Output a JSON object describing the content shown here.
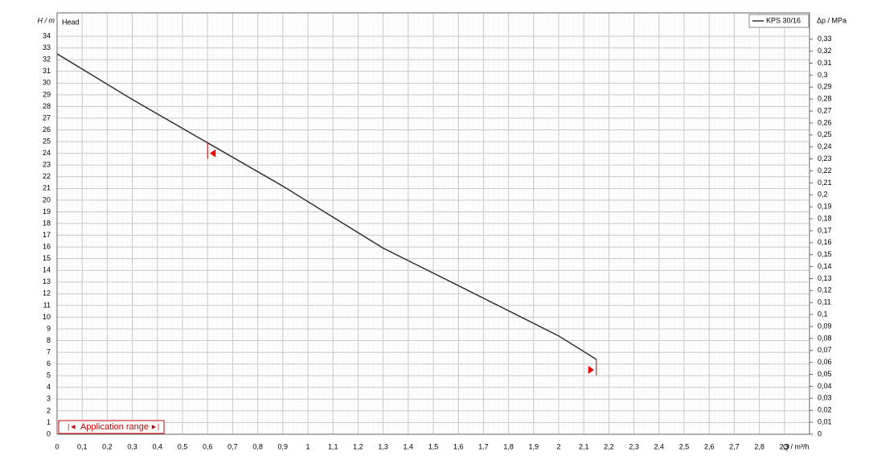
{
  "chart_data": {
    "type": "line",
    "y_axis_label": "H / m",
    "y_axis_title": "Head",
    "y2_axis_label": "Δp / MPa",
    "x_axis_label": "Q / m³/h",
    "application_range_label": "Application range",
    "application_range": {
      "min": 0.6,
      "max": 2.15
    },
    "series": [
      {
        "name": "KPS 30/16",
        "color": "#333333",
        "x": [
          0,
          0.3,
          0.6,
          0.9,
          1.3,
          1.6,
          2.0,
          2.15
        ],
        "values": [
          32.5,
          28.6,
          24.9,
          21.2,
          15.9,
          12.7,
          8.4,
          6.4
        ]
      }
    ],
    "xlim": [
      0,
      3
    ],
    "ylim": [
      0,
      36
    ],
    "y2lim": [
      0,
      0.352
    ],
    "grid": true,
    "xticks": [
      0,
      {
        "value": 0.1,
        "label": "0,1"
      },
      {
        "value": 0.2,
        "label": "0,2"
      },
      {
        "value": 0.3,
        "label": "0,3"
      },
      {
        "value": 0.4,
        "label": "0,4"
      },
      {
        "value": 0.5,
        "label": "0,5"
      },
      {
        "value": 0.6,
        "label": "0,6"
      },
      {
        "value": 0.7,
        "label": "0,7"
      },
      {
        "value": 0.8,
        "label": "0,8"
      },
      {
        "value": 0.9,
        "label": "0,9"
      },
      1,
      {
        "value": 1.1,
        "label": "1,1"
      },
      {
        "value": 1.2,
        "label": "1,2"
      },
      {
        "value": 1.3,
        "label": "1,3"
      },
      {
        "value": 1.4,
        "label": "1,4"
      },
      {
        "value": 1.5,
        "label": "1,5"
      },
      {
        "value": 1.6,
        "label": "1,6"
      },
      {
        "value": 1.7,
        "label": "1,7"
      },
      {
        "value": 1.8,
        "label": "1,8"
      },
      {
        "value": 1.9,
        "label": "1,9"
      },
      2,
      {
        "value": 2.1,
        "label": "2,1"
      },
      {
        "value": 2.2,
        "label": "2,2"
      },
      {
        "value": 2.3,
        "label": "2,3"
      },
      {
        "value": 2.4,
        "label": "2,4"
      },
      {
        "value": 2.5,
        "label": "2,5"
      },
      {
        "value": 2.6,
        "label": "2,6"
      },
      {
        "value": 2.7,
        "label": "2,7"
      },
      {
        "value": 2.8,
        "label": "2,8"
      },
      {
        "value": 2.9,
        "label": "2,9"
      }
    ],
    "yticks": [
      0,
      1,
      2,
      3,
      4,
      5,
      6,
      7,
      8,
      9,
      10,
      11,
      12,
      13,
      14,
      15,
      16,
      17,
      18,
      19,
      20,
      21,
      22,
      23,
      24,
      25,
      26,
      27,
      28,
      29,
      30,
      31,
      32,
      33,
      34
    ],
    "y2ticks": [
      0,
      {
        "value": 0.01,
        "label": "0,01"
      },
      {
        "value": 0.02,
        "label": "0,02"
      },
      {
        "value": 0.03,
        "label": "0,03"
      },
      {
        "value": 0.04,
        "label": "0,04"
      },
      {
        "value": 0.05,
        "label": "0,05"
      },
      {
        "value": 0.06,
        "label": "0,06"
      },
      {
        "value": 0.07,
        "label": "0,07"
      },
      {
        "value": 0.08,
        "label": "0,08"
      },
      {
        "value": 0.09,
        "label": "0,09"
      },
      {
        "value": 0.1,
        "label": "0,1"
      },
      {
        "value": 0.11,
        "label": "0,11"
      },
      {
        "value": 0.12,
        "label": "0,12"
      },
      {
        "value": 0.13,
        "label": "0,13"
      },
      {
        "value": 0.14,
        "label": "0,14"
      },
      {
        "value": 0.15,
        "label": "0,15"
      },
      {
        "value": 0.16,
        "label": "0,16"
      },
      {
        "value": 0.17,
        "label": "0,17"
      },
      {
        "value": 0.18,
        "label": "0,18"
      },
      {
        "value": 0.19,
        "label": "0,19"
      },
      {
        "value": 0.2,
        "label": "0,2"
      },
      {
        "value": 0.21,
        "label": "0,21"
      },
      {
        "value": 0.22,
        "label": "0,22"
      },
      {
        "value": 0.23,
        "label": "0,23"
      },
      {
        "value": 0.24,
        "label": "0,24"
      },
      {
        "value": 0.25,
        "label": "0,25"
      },
      {
        "value": 0.26,
        "label": "0,26"
      },
      {
        "value": 0.27,
        "label": "0,27"
      },
      {
        "value": 0.28,
        "label": "0,28"
      },
      {
        "value": 0.29,
        "label": "0,29"
      },
      {
        "value": 0.3,
        "label": "0,3"
      },
      {
        "value": 0.31,
        "label": "0,31"
      },
      {
        "value": 0.32,
        "label": "0,32"
      },
      {
        "value": 0.33,
        "label": "0,33"
      }
    ]
  }
}
